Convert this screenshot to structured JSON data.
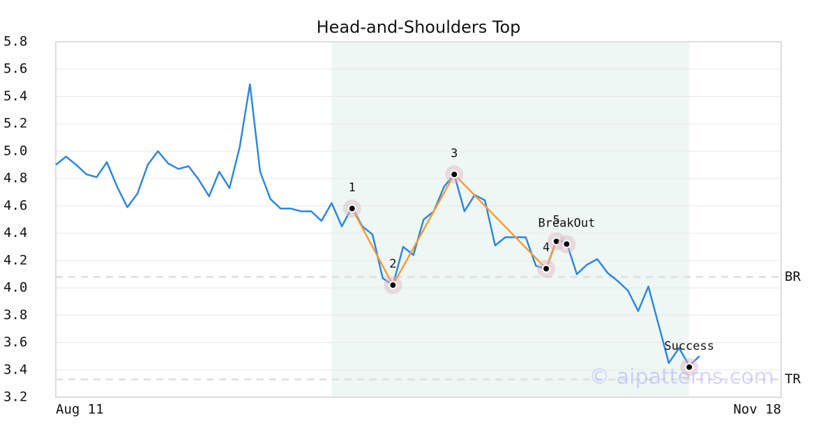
{
  "chart_data": {
    "type": "line",
    "title": "Head-and-Shoulders Top",
    "categories": [
      "Aug 11",
      null,
      null,
      null,
      null,
      null,
      null,
      null,
      null,
      null,
      null,
      null,
      null,
      null,
      null,
      null,
      null,
      null,
      null,
      null,
      null,
      null,
      null,
      null,
      null,
      null,
      null,
      null,
      null,
      null,
      null,
      null,
      null,
      null,
      null,
      null,
      null,
      null,
      null,
      null,
      null,
      null,
      null,
      null,
      null,
      null,
      null,
      null,
      null,
      null,
      null,
      null,
      null,
      null,
      null,
      null,
      null,
      null,
      null,
      null,
      null,
      null,
      null,
      null,
      null,
      null,
      null,
      null,
      null,
      null,
      null,
      "Nov 18"
    ],
    "xlim": [
      0,
      71
    ],
    "ylim": [
      3.2,
      5.8
    ],
    "yticks": [
      3.2,
      3.4,
      3.6,
      3.8,
      {
        "value": 4,
        "label": "4.0"
      },
      4.2,
      4.4,
      4.6,
      4.8,
      {
        "value": 5,
        "label": "5.0"
      },
      5.2,
      5.4,
      5.6,
      5.8
    ],
    "grid": true,
    "series": [
      {
        "color": "#2e86de",
        "values": [
          4.9,
          4.96,
          4.9,
          4.83,
          4.81,
          4.92,
          4.74,
          4.59,
          4.69,
          4.9,
          5.0,
          4.91,
          4.87,
          4.89,
          4.79,
          4.67,
          4.85,
          4.73,
          5.03,
          5.49,
          4.85,
          4.65,
          4.58,
          4.58,
          4.56,
          4.56,
          4.49,
          4.62,
          4.45,
          4.59,
          4.45,
          4.39,
          4.07,
          4.02,
          4.3,
          4.24,
          4.5,
          4.56,
          4.74,
          4.83,
          4.56,
          4.68,
          4.64,
          4.31,
          4.37,
          4.37,
          4.37,
          4.16,
          4.14,
          4.35,
          4.33,
          4.1,
          4.17,
          4.21,
          4.11,
          4.05,
          3.98,
          3.83,
          4.01,
          3.73,
          3.45,
          3.56,
          3.43,
          3.5,
          null,
          null,
          null,
          null,
          null,
          null,
          null,
          null
        ]
      }
    ],
    "pattern": {
      "color": "#f39c3c",
      "x": [
        29,
        33,
        39,
        48,
        49
      ],
      "values": [
        4.58,
        4.02,
        4.83,
        4.14,
        4.34
      ],
      "labels": [
        "1",
        "2",
        "3",
        "4",
        "5"
      ]
    },
    "annotations": [
      {
        "x": 50,
        "value": 4.32,
        "label": "BreakOut"
      },
      {
        "x": 62,
        "value": 3.42,
        "label": "Success"
      }
    ],
    "hlines": [
      {
        "value": 4.08,
        "label": "BR"
      },
      {
        "value": 3.33,
        "label": "TR"
      }
    ],
    "shade_x": [
      27,
      62
    ],
    "watermark": "© aipatterns.com"
  }
}
